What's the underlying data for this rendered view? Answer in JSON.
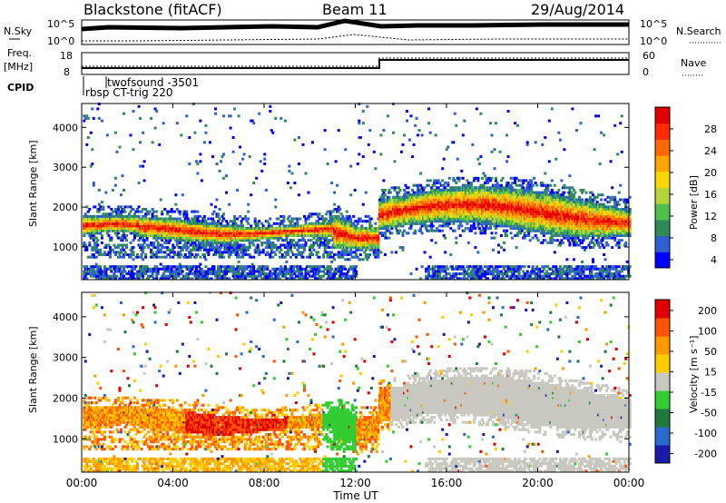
{
  "header": {
    "station": "Blackstone (fitACF)",
    "beam": "Beam 11",
    "date": "29/Aug/2014"
  },
  "top_panels": {
    "nsky_label": "N.Sky",
    "nsky_ticks": [
      "10^5",
      "10^0"
    ],
    "nsearch_label": "N.Search",
    "nsearch_ticks": [
      "10^5",
      "10^0"
    ],
    "freq_label": "Freq.",
    "freq_unit": "[MHz]",
    "freq_ticks": [
      "18",
      "8"
    ],
    "nave_label": "Nave",
    "nave_ticks": [
      "60",
      "0"
    ],
    "cpid_label": "CPID",
    "cpid_annotations": [
      "twofsound -3501",
      "rbsp CT-trig 220"
    ]
  },
  "chart_data": [
    {
      "type": "heatmap",
      "name": "power",
      "ylabel": "Slant Range [km]",
      "ylim": [
        180,
        4600
      ],
      "yticks": [
        "4000",
        "3000",
        "2000",
        "1000"
      ],
      "xlim": [
        0,
        24
      ],
      "colorbar_label": "Power [dB]",
      "colorbar_ticks": [
        "28",
        "24",
        "20",
        "16",
        "12",
        "8",
        "4"
      ],
      "colorbar_colors": [
        "#0000ff",
        "#2f5fd0",
        "#2e8b57",
        "#4cc24c",
        "#b5d33a",
        "#ffd700",
        "#ffa500",
        "#ff6a00",
        "#ff2a00",
        "#e00000"
      ],
      "grid": false
    },
    {
      "type": "heatmap",
      "name": "velocity",
      "ylabel": "Slant Range [km]",
      "ylim": [
        180,
        4600
      ],
      "yticks": [
        "4000",
        "3000",
        "2000",
        "1000"
      ],
      "xlim": [
        0,
        24
      ],
      "xlabel": "Time UT",
      "xticks": [
        "00:00",
        "04:00",
        "08:00",
        "12:00",
        "16:00",
        "20:00",
        "00:00"
      ],
      "colorbar_label": "Velocity [m s⁻¹]",
      "colorbar_ticks": [
        "200",
        "100",
        "50",
        "15",
        "-15",
        "-50",
        "-100",
        "-200"
      ],
      "colorbar_colors": [
        "#1a1aaa",
        "#2a6acc",
        "#1e7a3a",
        "#33cc33",
        "#c8c8c0",
        "#ffcc00",
        "#ff9900",
        "#ff5500",
        "#e00000"
      ],
      "grid": false
    }
  ]
}
